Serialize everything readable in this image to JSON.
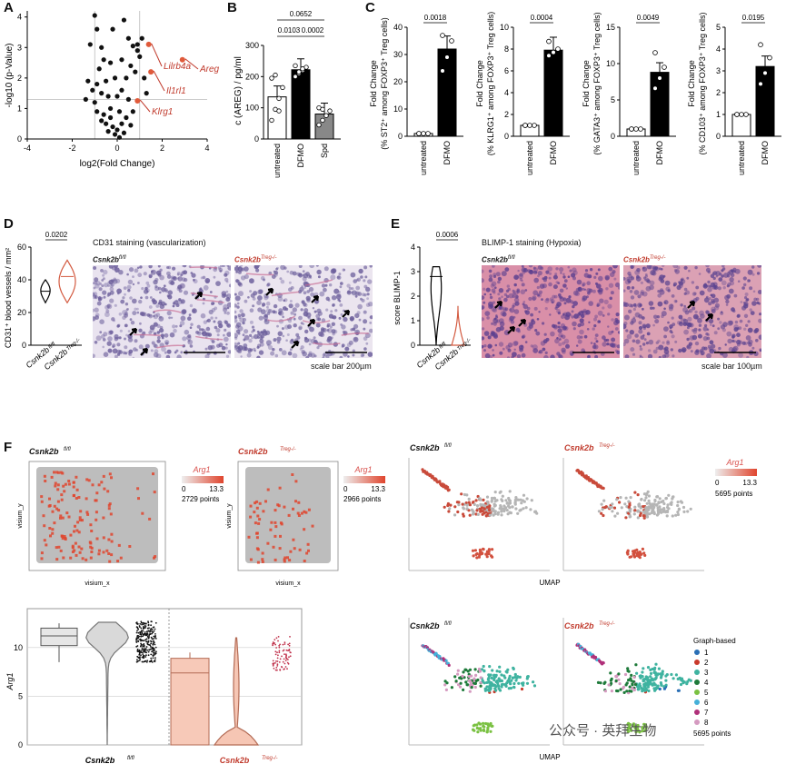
{
  "panels": {
    "A": "A",
    "B": "B",
    "C": "C",
    "D": "D",
    "E": "E",
    "F": "F"
  },
  "panelA": {
    "chart_data": {
      "type": "scatter",
      "xlabel": "log2(Fold Change)",
      "ylabel": "-log10 (p-Value)",
      "xticks": [
        "-4",
        "-2",
        "0",
        "2",
        "4"
      ],
      "yticks": [
        "0",
        "1",
        "2",
        "3",
        "4"
      ],
      "xlim": [
        -4,
        4
      ],
      "ylim": [
        0,
        4.2
      ],
      "points": [
        [
          -1.0,
          4.05
        ],
        [
          -0.9,
          3.6
        ],
        [
          -0.2,
          3.6
        ],
        [
          -1.2,
          3.1
        ],
        [
          -0.7,
          3.0
        ],
        [
          0.3,
          3.9
        ],
        [
          0.5,
          3.3
        ],
        [
          0.7,
          3.05
        ],
        [
          0.9,
          3.1
        ],
        [
          1.1,
          3.3
        ],
        [
          -0.6,
          2.6
        ],
        [
          -0.3,
          2.5
        ],
        [
          -0.8,
          2.3
        ],
        [
          0.2,
          2.6
        ],
        [
          0.6,
          2.4
        ],
        [
          0.9,
          2.9
        ],
        [
          1.0,
          2.7
        ],
        [
          -1.3,
          1.9
        ],
        [
          -0.9,
          1.8
        ],
        [
          -0.5,
          1.9
        ],
        [
          -0.1,
          2.0
        ],
        [
          0.4,
          2.0
        ],
        [
          0.8,
          2.2
        ],
        [
          1.2,
          2.0
        ],
        [
          -1.4,
          1.3
        ],
        [
          -1.0,
          1.2
        ],
        [
          -0.7,
          1.5
        ],
        [
          -0.4,
          1.4
        ],
        [
          0.0,
          1.4
        ],
        [
          0.2,
          1.6
        ],
        [
          0.5,
          1.3
        ],
        [
          -0.9,
          0.9
        ],
        [
          -0.6,
          0.8
        ],
        [
          -0.3,
          1.0
        ],
        [
          0.1,
          0.9
        ],
        [
          0.4,
          0.7
        ],
        [
          0.7,
          0.9
        ],
        [
          -0.5,
          0.5
        ],
        [
          -0.2,
          0.4
        ],
        [
          0.0,
          0.3
        ],
        [
          0.2,
          0.5
        ],
        [
          -0.1,
          0.15
        ],
        [
          0.3,
          0.2
        ],
        [
          -0.4,
          0.25
        ],
        [
          0.1,
          0.05
        ],
        [
          -0.7,
          0.6
        ],
        [
          0.6,
          0.45
        ],
        [
          -1.1,
          1.6
        ],
        [
          1.3,
          1.5
        ],
        [
          -0.3,
          0.7
        ]
      ],
      "highlighted": [
        {
          "name": "Lilrb4a",
          "x": 1.4,
          "y": 3.1
        },
        {
          "name": "Areg",
          "x": 2.9,
          "y": 2.6
        },
        {
          "name": "Il1rl1",
          "x": 1.5,
          "y": 2.2
        },
        {
          "name": "Klrg1",
          "x": 0.9,
          "y": 1.25
        }
      ],
      "threshold_y": 1.3
    }
  },
  "panelB": {
    "chart_data": {
      "type": "bar",
      "ylabel": "c (AREG) / pg/ml",
      "categories": [
        "untreated",
        "DFMO",
        "Spd"
      ],
      "values": [
        135,
        222,
        80
      ],
      "ylim": [
        0,
        300
      ],
      "yticks": [
        "0",
        "100",
        "200",
        "300"
      ],
      "points": [
        [
          60,
          95,
          130,
          165,
          195,
          205,
          90
        ],
        [
          200,
          210,
          220,
          230,
          235,
          215,
          225
        ],
        [
          45,
          60,
          75,
          90,
          100,
          95
        ]
      ],
      "pvalues": [
        {
          "label": "0.0652",
          "from": 0,
          "to": 2
        },
        {
          "label": "0.0103",
          "from": 0,
          "to": 1
        },
        {
          "label": "0.0002",
          "from": 1,
          "to": 2
        }
      ]
    }
  },
  "panelC": [
    {
      "ylabel_lines": [
        "Fold Change",
        "(% ST2⁺ among FOXP3⁺ Treg cells)"
      ],
      "yticks": [
        "0",
        "10",
        "20",
        "30",
        "40"
      ],
      "ylim": [
        0,
        40
      ],
      "values": [
        1,
        32
      ],
      "pvalue": "0.0018",
      "points": [
        [
          1,
          1,
          1,
          1
        ],
        [
          24,
          29,
          35,
          37
        ]
      ]
    },
    {
      "ylabel_lines": [
        "Fold Change",
        "(% KLRG1⁺ among FOXP3⁺ Treg cells)"
      ],
      "yticks": [
        "0",
        "2",
        "4",
        "6",
        "8",
        "10"
      ],
      "ylim": [
        0,
        10
      ],
      "values": [
        1,
        7.9
      ],
      "pvalue": "0.0004",
      "points": [
        [
          1,
          1,
          1,
          1
        ],
        [
          7.4,
          7.7,
          8.0,
          8.7
        ]
      ]
    },
    {
      "ylabel_lines": [
        "Fold Change",
        "(% GATA3⁺ among FOXP3⁺ Treg cells)"
      ],
      "yticks": [
        "0",
        "5",
        "10",
        "15"
      ],
      "ylim": [
        0,
        15
      ],
      "values": [
        1,
        8.8
      ],
      "pvalue": "0.0049",
      "points": [
        [
          1,
          1,
          1,
          1
        ],
        [
          6.6,
          8.0,
          9.5,
          11.5
        ]
      ]
    },
    {
      "ylabel_lines": [
        "Fold Change",
        "(% CD103⁺ among FOXP3⁺ Treg cells)"
      ],
      "yticks": [
        "0",
        "1",
        "2",
        "3",
        "4",
        "5"
      ],
      "ylim": [
        0,
        5
      ],
      "values": [
        1,
        3.2
      ],
      "pvalue": "0.0195",
      "points": [
        [
          1,
          1,
          1,
          1
        ],
        [
          2.4,
          2.9,
          3.6,
          4.2
        ]
      ]
    }
  ],
  "panelC_categories": [
    "untreated",
    "DFMO"
  ],
  "panelD": {
    "ylabel": "CD31⁺ blood vessels / mm²",
    "yticks": [
      "0",
      "20",
      "40",
      "60"
    ],
    "pvalue": "0.0202",
    "groups": [
      "Csnk2b",
      "Csnk2b"
    ],
    "group_sup": [
      "fl/fl",
      "Treg-/-"
    ],
    "title": "CD31 staining (vascularization)",
    "img_labels": [
      "Csnk2b",
      "Csnk2b"
    ],
    "scale": "scale bar 200µm"
  },
  "panelE": {
    "ylabel": "score BLIMP-1",
    "yticks": [
      "0",
      "1",
      "2",
      "3",
      "4"
    ],
    "pvalue": "0.0006",
    "groups": [
      "Csnk2b",
      "Csnk2b"
    ],
    "group_sup": [
      "fl/fl",
      "Treg-/-"
    ],
    "title": "BLIMP-1 staining (Hypoxia)",
    "scale": "scale bar 100µm"
  },
  "panelF": {
    "spatial": [
      {
        "label": "Csnk2b",
        "sup": "fl/fl",
        "gene": "Arg1",
        "min": "0",
        "max": "13.3",
        "points": "2729 points",
        "xlabel": "visium_x",
        "ylabel": "visium_y"
      },
      {
        "label": "Csnk2b",
        "sup": "Treg-/-",
        "gene": "Arg1",
        "min": "0",
        "max": "13.3",
        "points": "2966 points",
        "xlabel": "visium_x",
        "ylabel": "visium_y"
      }
    ],
    "umap_top": {
      "labels": [
        "Csnk2b",
        "Csnk2b"
      ],
      "sups": [
        "fl/fl",
        "Treg-/-"
      ],
      "gene": "Arg1",
      "min": "0",
      "max": "13.3",
      "points": "5695 points",
      "xlabel": "UMAP"
    },
    "violin": {
      "ylabel": "Arg1",
      "yticks": [
        "0",
        "5",
        "10"
      ],
      "groups": [
        "Csnk2b",
        "Csnk2b"
      ],
      "sups": [
        "fl/fl",
        "Treg-/-"
      ]
    },
    "umap_bottom": {
      "labels": [
        "Csnk2b",
        "Csnk2b"
      ],
      "sups": [
        "fl/fl",
        "Treg-/-"
      ],
      "legend_title": "Graph-based",
      "clusters": [
        "1",
        "2",
        "3",
        "4",
        "5",
        "6",
        "7",
        "8"
      ],
      "cluster_colors": [
        "#2a6fb5",
        "#c93a2b",
        "#3fb3a0",
        "#1e7a3a",
        "#7ac142",
        "#45b0d8",
        "#b0307a",
        "#d59ac0"
      ],
      "points": "5695 points",
      "xlabel": "UMAP"
    }
  },
  "watermark": "公众号 · 英拜生物"
}
